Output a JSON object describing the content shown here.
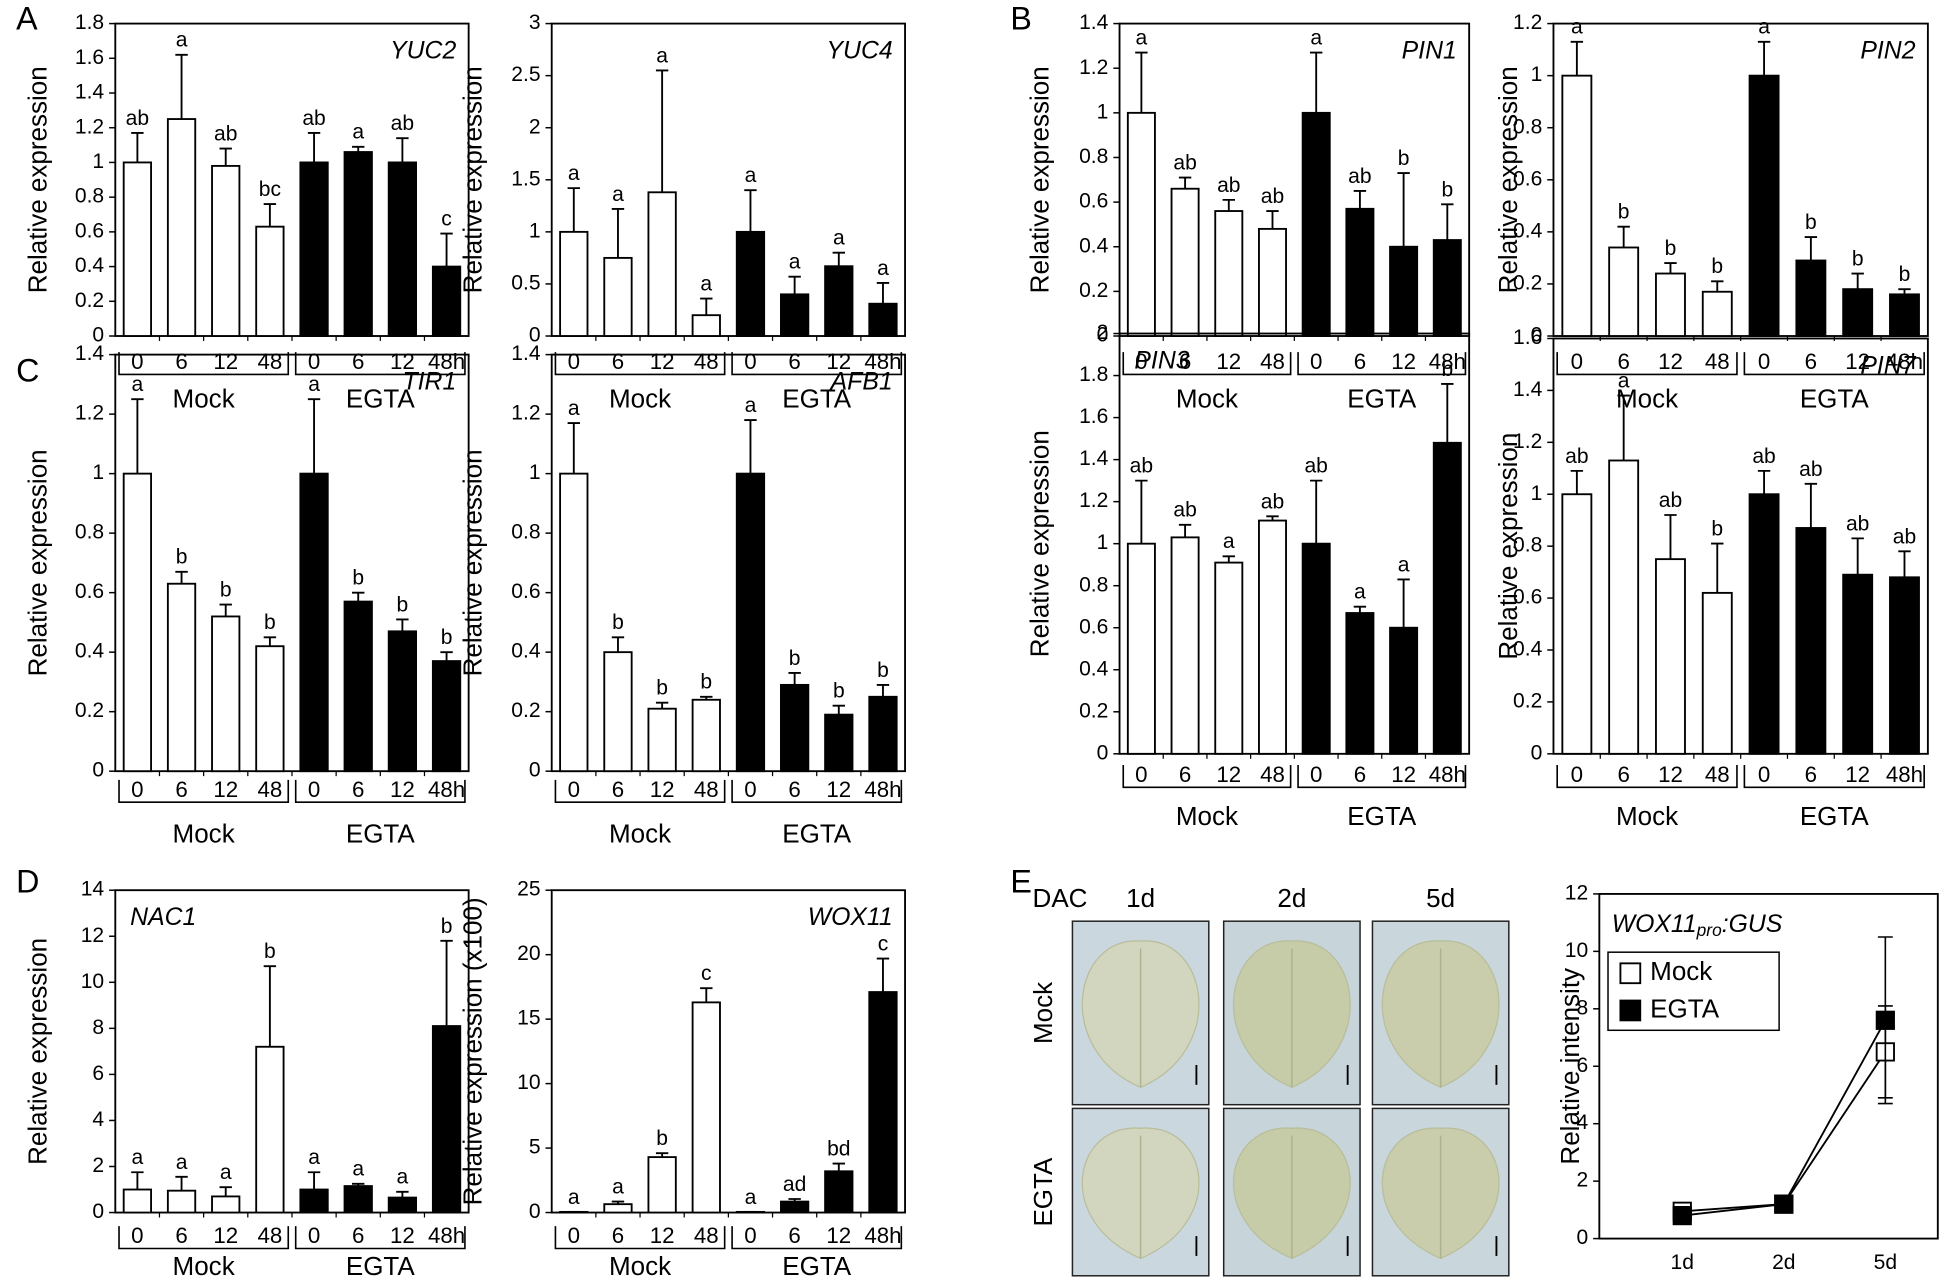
{
  "chart_data": [
    {
      "type": "bar",
      "panel": "A",
      "gene": "YUC2",
      "ylabel": "Relative expression",
      "categories": [
        "0",
        "6",
        "12",
        "48",
        "0",
        "6",
        "12",
        "48h"
      ],
      "groups": [
        "Mock",
        "EGTA"
      ],
      "group_colors": [
        "#ffffff",
        "#000000"
      ],
      "values": [
        1.0,
        1.25,
        0.98,
        0.63,
        1.0,
        1.06,
        1.0,
        0.4
      ],
      "errors": [
        0.17,
        0.37,
        0.1,
        0.13,
        0.17,
        0.03,
        0.14,
        0.19
      ],
      "annotations": [
        "ab",
        "a",
        "ab",
        "bc",
        "ab",
        "a",
        "ab",
        "c"
      ],
      "ylim": [
        0,
        1.8
      ],
      "yticks": [
        0,
        0.2,
        0.4,
        0.6,
        0.8,
        1,
        1.2,
        1.4,
        1.6,
        1.8
      ]
    },
    {
      "type": "bar",
      "gene": "YUC4",
      "ylabel": "Relative expression",
      "categories": [
        "0",
        "6",
        "12",
        "48",
        "0",
        "6",
        "12",
        "48h"
      ],
      "groups": [
        "Mock",
        "EGTA"
      ],
      "group_colors": [
        "#ffffff",
        "#000000"
      ],
      "values": [
        1.0,
        0.75,
        1.38,
        0.2,
        1.0,
        0.4,
        0.67,
        0.31
      ],
      "errors": [
        0.42,
        0.47,
        1.17,
        0.16,
        0.4,
        0.17,
        0.13,
        0.2
      ],
      "annotations": [
        "a",
        "a",
        "a",
        "a",
        "a",
        "a",
        "a",
        "a"
      ],
      "ylim": [
        0,
        3
      ],
      "yticks": [
        0,
        0.5,
        1,
        1.5,
        2,
        2.5,
        3
      ]
    },
    {
      "type": "bar",
      "panel": "B",
      "gene": "PIN1",
      "ylabel": "Relative expression",
      "categories": [
        "0",
        "6",
        "12",
        "48",
        "0",
        "6",
        "12",
        "48h"
      ],
      "groups": [
        "Mock",
        "EGTA"
      ],
      "group_colors": [
        "#ffffff",
        "#000000"
      ],
      "values": [
        1.0,
        0.66,
        0.56,
        0.48,
        1.0,
        0.57,
        0.4,
        0.43
      ],
      "errors": [
        0.27,
        0.05,
        0.05,
        0.08,
        0.27,
        0.08,
        0.33,
        0.16
      ],
      "annotations": [
        "a",
        "ab",
        "ab",
        "ab",
        "a",
        "ab",
        "b",
        "b"
      ],
      "ylim": [
        0,
        1.4
      ],
      "yticks": [
        0,
        0.2,
        0.4,
        0.6,
        0.8,
        1,
        1.2,
        1.4
      ]
    },
    {
      "type": "bar",
      "gene": "PIN2",
      "ylabel": "Relative expression",
      "categories": [
        "0",
        "6",
        "12",
        "48",
        "0",
        "6",
        "12",
        "48h"
      ],
      "groups": [
        "Mock",
        "EGTA"
      ],
      "group_colors": [
        "#ffffff",
        "#000000"
      ],
      "values": [
        1.0,
        0.34,
        0.24,
        0.17,
        1.0,
        0.29,
        0.18,
        0.16
      ],
      "errors": [
        0.13,
        0.08,
        0.04,
        0.04,
        0.13,
        0.09,
        0.06,
        0.02
      ],
      "annotations": [
        "a",
        "b",
        "b",
        "b",
        "a",
        "b",
        "b",
        "b"
      ],
      "ylim": [
        0,
        1.2
      ],
      "yticks": [
        0,
        0.2,
        0.4,
        0.6,
        0.8,
        1,
        1.2
      ]
    },
    {
      "type": "bar",
      "panel": "C",
      "gene": "TIR1",
      "ylabel": "Relative expression",
      "categories": [
        "0",
        "6",
        "12",
        "48",
        "0",
        "6",
        "12",
        "48h"
      ],
      "groups": [
        "Mock",
        "EGTA"
      ],
      "group_colors": [
        "#ffffff",
        "#000000"
      ],
      "values": [
        1.0,
        0.63,
        0.52,
        0.42,
        1.0,
        0.57,
        0.47,
        0.37
      ],
      "errors": [
        0.25,
        0.04,
        0.04,
        0.03,
        0.25,
        0.03,
        0.04,
        0.03
      ],
      "annotations": [
        "a",
        "b",
        "b",
        "b",
        "a",
        "b",
        "b",
        "b"
      ],
      "ylim": [
        0,
        1.4
      ],
      "yticks": [
        0,
        0.2,
        0.4,
        0.6,
        0.8,
        1,
        1.2,
        1.4
      ]
    },
    {
      "type": "bar",
      "gene": "AFB1",
      "ylabel": "Relative expression",
      "categories": [
        "0",
        "6",
        "12",
        "48",
        "0",
        "6",
        "12",
        "48h"
      ],
      "groups": [
        "Mock",
        "EGTA"
      ],
      "group_colors": [
        "#ffffff",
        "#000000"
      ],
      "values": [
        1.0,
        0.4,
        0.21,
        0.24,
        1.0,
        0.29,
        0.19,
        0.25
      ],
      "errors": [
        0.17,
        0.05,
        0.02,
        0.01,
        0.18,
        0.04,
        0.03,
        0.04
      ],
      "annotations": [
        "a",
        "b",
        "b",
        "b",
        "a",
        "b",
        "b",
        "b"
      ],
      "ylim": [
        0,
        1.4
      ],
      "yticks": [
        0,
        0.2,
        0.4,
        0.6,
        0.8,
        1,
        1.2,
        1.4
      ]
    },
    {
      "type": "bar",
      "gene": "PIN3",
      "ylabel": "Relative expression",
      "categories": [
        "0",
        "6",
        "12",
        "48",
        "0",
        "6",
        "12",
        "48h"
      ],
      "groups": [
        "Mock",
        "EGTA"
      ],
      "group_colors": [
        "#ffffff",
        "#000000"
      ],
      "values": [
        1.0,
        1.03,
        0.91,
        1.11,
        1.0,
        0.67,
        0.6,
        1.48
      ],
      "errors": [
        0.3,
        0.06,
        0.03,
        0.02,
        0.3,
        0.03,
        0.23,
        0.28
      ],
      "annotations": [
        "ab",
        "ab",
        "a",
        "ab",
        "ab",
        "a",
        "a",
        "b"
      ],
      "ylim": [
        0,
        2
      ],
      "yticks": [
        0,
        0.2,
        0.4,
        0.6,
        0.8,
        1,
        1.2,
        1.4,
        1.6,
        1.8,
        2
      ]
    },
    {
      "type": "bar",
      "gene": "PIN7",
      "ylabel": "Relative expression",
      "categories": [
        "0",
        "6",
        "12",
        "48",
        "0",
        "6",
        "12",
        "48h"
      ],
      "groups": [
        "Mock",
        "EGTA"
      ],
      "group_colors": [
        "#ffffff",
        "#000000"
      ],
      "values": [
        1.0,
        1.13,
        0.75,
        0.62,
        1.0,
        0.87,
        0.69,
        0.68
      ],
      "errors": [
        0.09,
        0.25,
        0.17,
        0.19,
        0.09,
        0.17,
        0.14,
        0.1
      ],
      "annotations": [
        "ab",
        "a",
        "ab",
        "b",
        "ab",
        "ab",
        "ab",
        "ab"
      ],
      "ylim": [
        0,
        1.6
      ],
      "yticks": [
        0,
        0.2,
        0.4,
        0.6,
        0.8,
        1,
        1.2,
        1.4,
        1.6
      ]
    },
    {
      "type": "bar",
      "panel": "D",
      "gene": "NAC1",
      "ylabel": "Relative expression",
      "categories": [
        "0",
        "6",
        "12",
        "48",
        "0",
        "6",
        "12",
        "48h"
      ],
      "groups": [
        "Mock",
        "EGTA"
      ],
      "group_colors": [
        "#ffffff",
        "#000000"
      ],
      "values": [
        1.0,
        0.95,
        0.7,
        7.2,
        1.0,
        1.15,
        0.65,
        8.1
      ],
      "errors": [
        0.75,
        0.6,
        0.4,
        3.5,
        0.75,
        0.1,
        0.25,
        3.7
      ],
      "annotations": [
        "a",
        "a",
        "a",
        "b",
        "a",
        "a",
        "a",
        "b"
      ],
      "ylim": [
        0,
        14
      ],
      "yticks": [
        0,
        2,
        4,
        6,
        8,
        10,
        12,
        14
      ]
    },
    {
      "type": "bar",
      "gene": "WOX11",
      "ylabel": "Relative expression (x100)",
      "categories": [
        "0",
        "6",
        "12",
        "48",
        "0",
        "6",
        "12",
        "48h"
      ],
      "groups": [
        "Mock",
        "EGTA"
      ],
      "group_colors": [
        "#ffffff",
        "#000000"
      ],
      "values": [
        0.05,
        0.65,
        4.3,
        16.3,
        0.05,
        0.85,
        3.2,
        17.1
      ],
      "errors": [
        0,
        0.2,
        0.3,
        1.1,
        0,
        0.2,
        0.6,
        2.6
      ],
      "annotations": [
        "a",
        "a",
        "b",
        "c",
        "a",
        "ad",
        "bd",
        "c"
      ],
      "ylim": [
        0,
        25
      ],
      "yticks": [
        0,
        5,
        10,
        15,
        20,
        25
      ]
    },
    {
      "type": "image-grid",
      "panel": "E",
      "corner_label": "DAC",
      "columns": [
        "1d",
        "2d",
        "5d"
      ],
      "rows": [
        "Mock",
        "EGTA"
      ]
    },
    {
      "type": "line",
      "label_main": "WOX11",
      "label_sub": "pro",
      "label_tail": ":GUS",
      "ylabel": "Relative intensity",
      "categories": [
        "1d",
        "2d",
        "5d"
      ],
      "series": [
        {
          "name": "Mock",
          "color": "#ffffff",
          "values": [
            0.95,
            1.2,
            6.5
          ],
          "errors": [
            0.1,
            0.1,
            1.6
          ]
        },
        {
          "name": "EGTA",
          "color": "#000000",
          "values": [
            0.8,
            1.2,
            7.6
          ],
          "errors": [
            0.1,
            0.1,
            2.9
          ]
        }
      ],
      "ylim": [
        0,
        12
      ],
      "yticks": [
        0,
        2,
        4,
        6,
        8,
        10,
        12
      ],
      "legend": "upper left"
    }
  ]
}
